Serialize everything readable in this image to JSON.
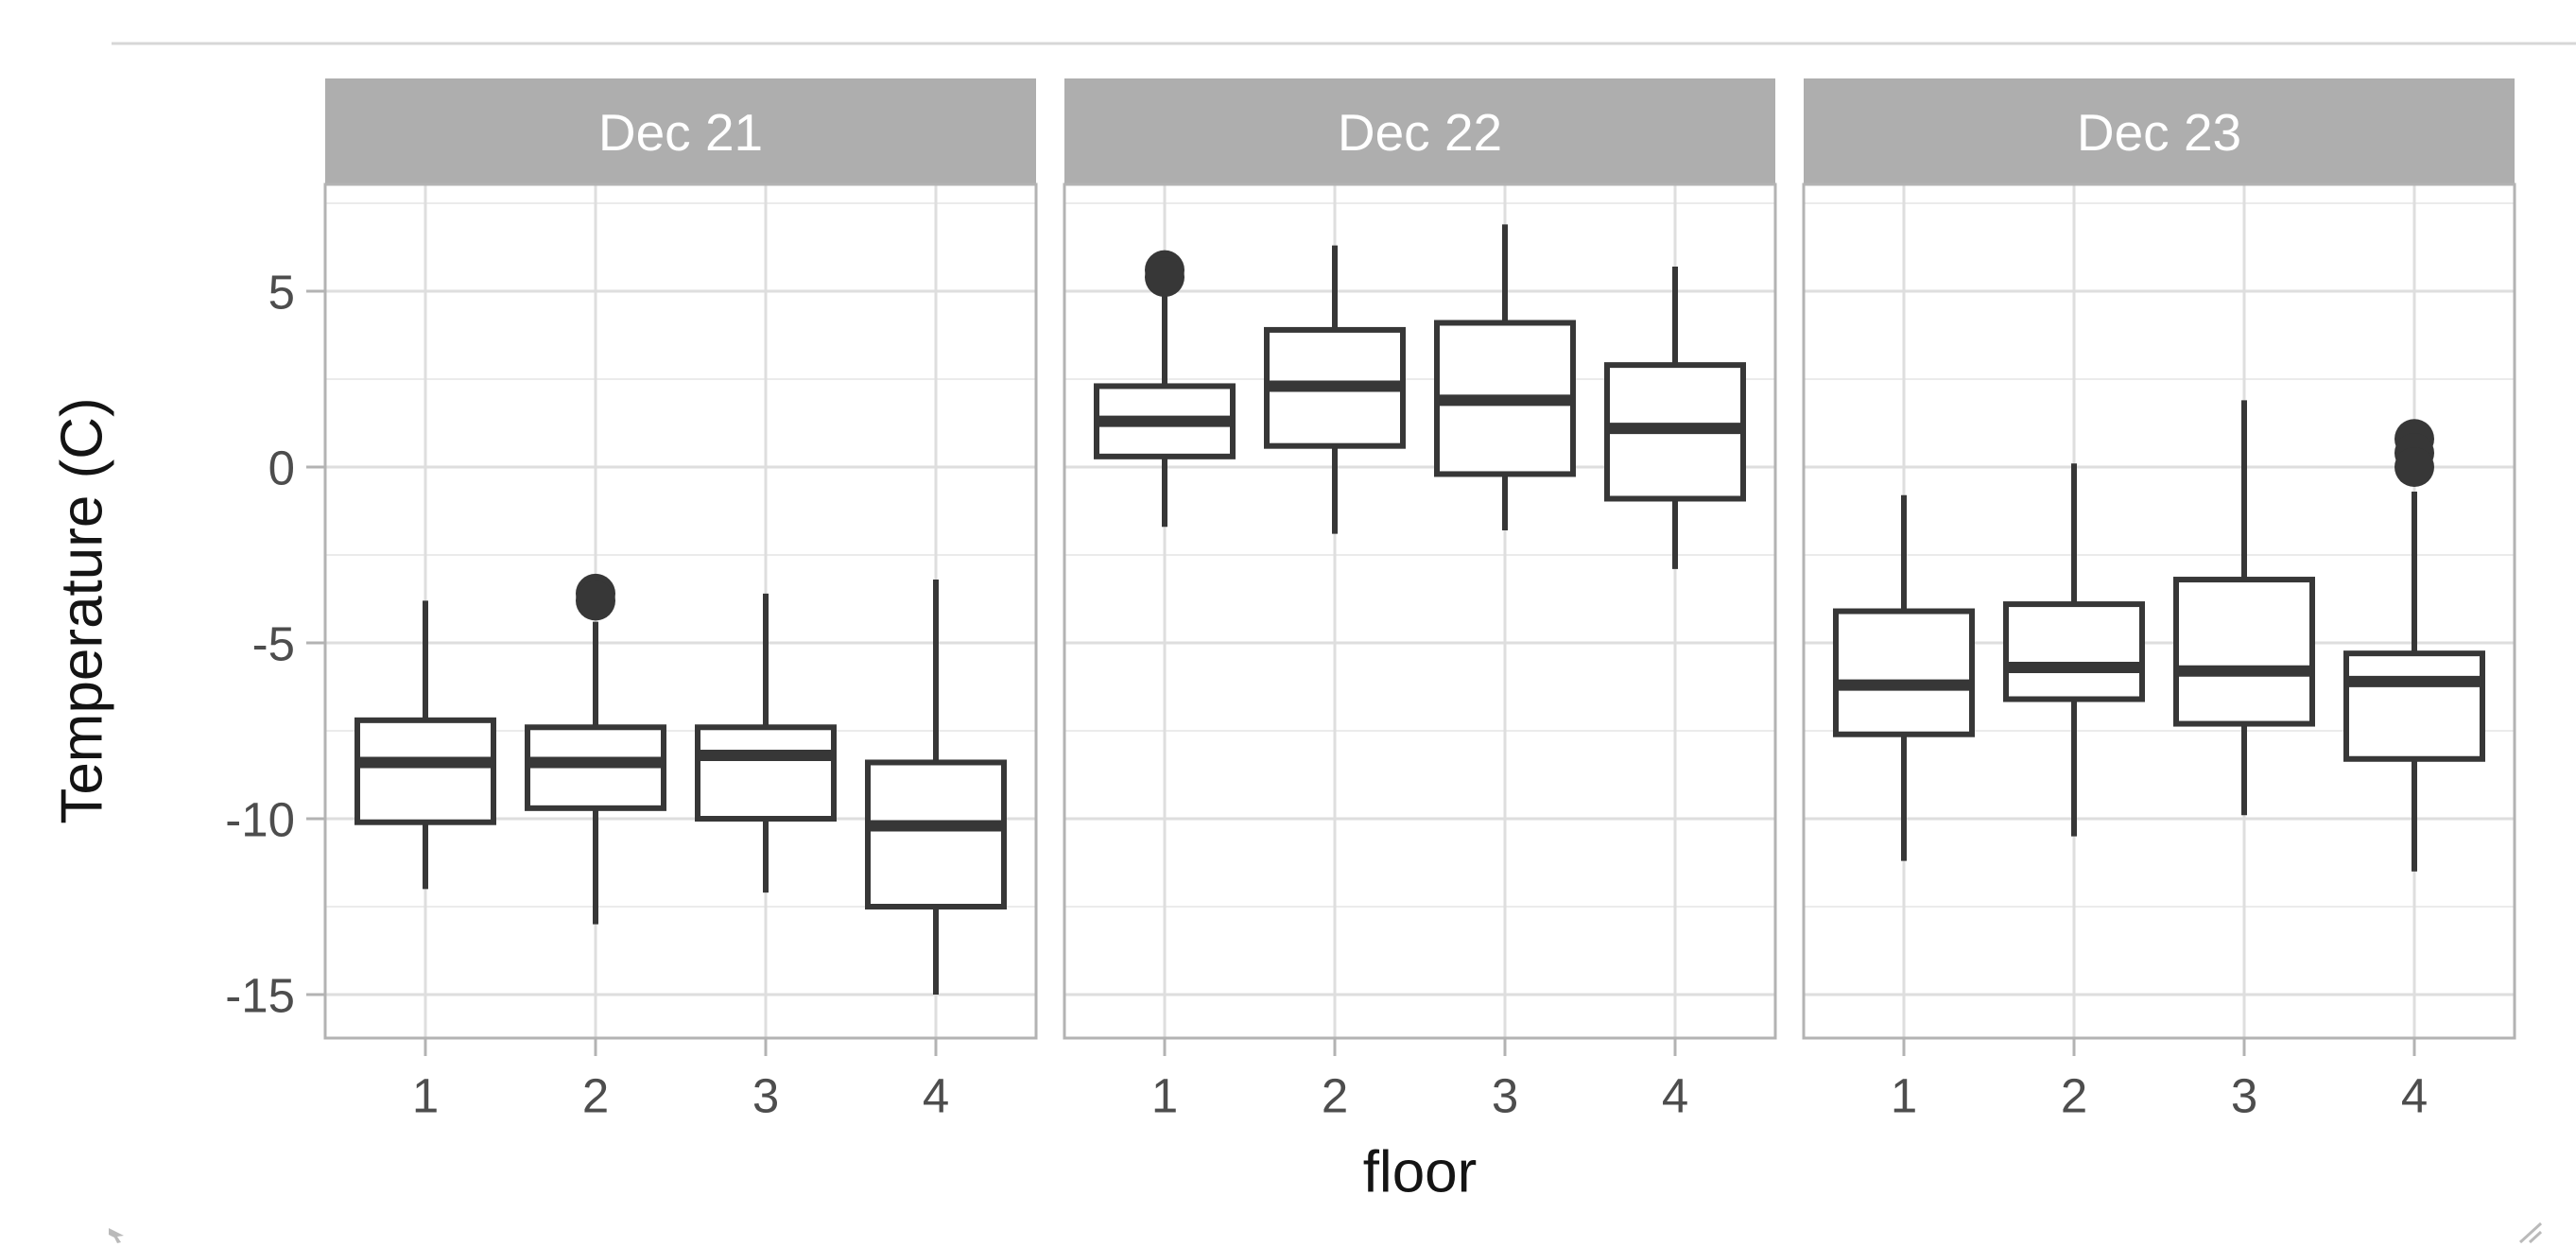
{
  "colors": {
    "background": "#ffffff",
    "strip_background": "#aeaeae",
    "strip_text": "#ffffff",
    "panel_border": "#b3b3b3",
    "grid_major": "#dedede",
    "grid_minor": "#ebebeb",
    "axis_tick": "#b3b3b3",
    "axis_tick_text": "#4d4d4d",
    "axis_title_text": "#141414",
    "box_stroke": "#373737",
    "top_divider": "#d7d7d7",
    "corner_marks": "#bababa"
  },
  "chart_data": {
    "type": "boxplot",
    "title": "",
    "xlabel": "floor",
    "ylabel": "Temperature (C)",
    "x_categories": [
      "1",
      "2",
      "3",
      "4"
    ],
    "y_major_ticks": [
      5,
      0,
      -5,
      -10,
      -15
    ],
    "y_tick_labels": [
      "5",
      "0",
      "-5",
      "-10",
      "-15"
    ],
    "y_minor_ticks": [
      7.5,
      2.5,
      -2.5,
      -7.5,
      -12.5
    ],
    "ylim": [
      -16.25,
      8.05
    ],
    "grid": true,
    "legend_position": "none",
    "facets": [
      {
        "label": "Dec 21",
        "boxes": [
          {
            "x": "1",
            "low": -12.0,
            "q1": -10.1,
            "median": -8.4,
            "q3": -7.2,
            "high": -3.8,
            "outliers": []
          },
          {
            "x": "2",
            "low": -13.0,
            "q1": -9.7,
            "median": -8.4,
            "q3": -7.4,
            "high": -4.4,
            "outliers": [
              -3.6,
              -3.8
            ]
          },
          {
            "x": "3",
            "low": -12.1,
            "q1": -10.0,
            "median": -8.2,
            "q3": -7.4,
            "high": -3.6,
            "outliers": []
          },
          {
            "x": "4",
            "low": -15.0,
            "q1": -12.5,
            "median": -10.2,
            "q3": -8.4,
            "high": -3.2,
            "outliers": []
          }
        ]
      },
      {
        "label": "Dec 22",
        "boxes": [
          {
            "x": "1",
            "low": -1.7,
            "q1": 0.3,
            "median": 1.3,
            "q3": 2.3,
            "high": 4.9,
            "outliers": [
              5.6,
              5.4
            ]
          },
          {
            "x": "2",
            "low": -1.9,
            "q1": 0.6,
            "median": 2.3,
            "q3": 3.9,
            "high": 6.3,
            "outliers": []
          },
          {
            "x": "3",
            "low": -1.8,
            "q1": -0.2,
            "median": 1.9,
            "q3": 4.1,
            "high": 6.9,
            "outliers": []
          },
          {
            "x": "4",
            "low": -2.9,
            "q1": -0.9,
            "median": 1.1,
            "q3": 2.9,
            "high": 5.7,
            "outliers": []
          }
        ]
      },
      {
        "label": "Dec 23",
        "boxes": [
          {
            "x": "1",
            "low": -11.2,
            "q1": -7.6,
            "median": -6.2,
            "q3": -4.1,
            "high": -0.8,
            "outliers": []
          },
          {
            "x": "2",
            "low": -10.5,
            "q1": -6.6,
            "median": -5.7,
            "q3": -3.9,
            "high": 0.1,
            "outliers": []
          },
          {
            "x": "3",
            "low": -9.9,
            "q1": -7.3,
            "median": -5.8,
            "q3": -3.2,
            "high": 1.9,
            "outliers": []
          },
          {
            "x": "4",
            "low": -11.5,
            "q1": -8.3,
            "median": -6.1,
            "q3": -5.3,
            "high": -0.7,
            "outliers": [
              0.8,
              0.4,
              0.0
            ]
          }
        ]
      }
    ]
  }
}
